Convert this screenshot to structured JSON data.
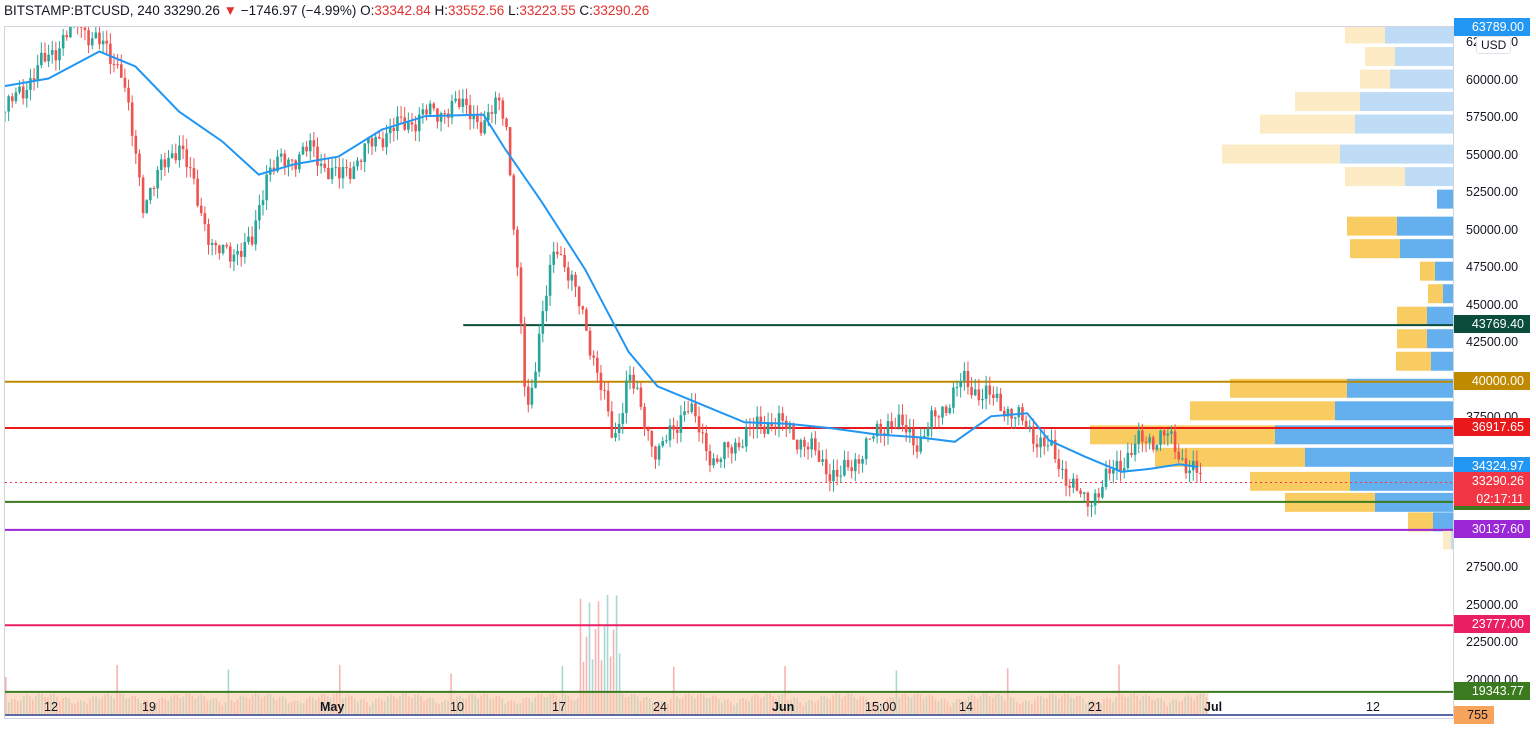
{
  "header": {
    "symbol": "BITSTAMP:BTCUSD, 240",
    "last": "33290.26",
    "arrow": "▼",
    "change": "−1746.97 (−4.99%)",
    "o_label": "O:",
    "o": "33342.84",
    "h_label": "H:",
    "h": "33552.56",
    "l_label": "L:",
    "l": "33223.55",
    "c_label": "C:",
    "c": "33290.26"
  },
  "currency_button": "USD",
  "price_axis": {
    "ticks": [
      "62500.00",
      "60000.00",
      "57500.00",
      "55000.00",
      "52500.00",
      "50000.00",
      "47500.00",
      "45000.00",
      "42500.00",
      "37500.00",
      "27500.00",
      "25000.00",
      "22500.00",
      "20000.00"
    ],
    "tick_values": [
      62500,
      60000,
      57500,
      55000,
      52500,
      50000,
      47500,
      45000,
      42500,
      37500,
      27500,
      25000,
      22500,
      20000
    ],
    "top_partial": "63789.00"
  },
  "time_axis": {
    "labels": [
      "12",
      "19",
      "May",
      "10",
      "17",
      "24",
      "Jun",
      "15:00",
      "14",
      "21",
      "Jul",
      "12"
    ],
    "bold": [
      "May",
      "Jun",
      "Jul"
    ]
  },
  "levels": [
    {
      "name": "level-43769",
      "value": "43769.40",
      "price": 43769.4,
      "color": "#0b4d3c",
      "x_start": 0.316
    },
    {
      "name": "level-40000",
      "value": "40000.00",
      "price": 40000,
      "color": "#bf8a00",
      "x_start": 0
    },
    {
      "name": "level-36917",
      "value": "36917.65",
      "price": 36917.65,
      "color": "#e8181b",
      "x_start": 0
    },
    {
      "name": "level-32000",
      "value": "32000.00",
      "price": 32000,
      "color": "#3b7a1f",
      "x_start": 0
    },
    {
      "name": "level-30137",
      "value": "30137.60",
      "price": 30137.6,
      "color": "#9c27d6",
      "x_start": 0
    },
    {
      "name": "level-23777",
      "value": "23777.00",
      "price": 23777,
      "color": "#e91e63",
      "x_start": 0
    },
    {
      "name": "level-19343",
      "value": "19343.77",
      "price": 19343.77,
      "color": "#3b7a1f",
      "x_start": 0
    }
  ],
  "price_tags": {
    "ma": {
      "value": "34324.97",
      "color": "#2196f3",
      "price": 34324.97
    },
    "last": {
      "value": "33290.26",
      "countdown": "02:17:11",
      "color": "#f23645",
      "price": 33290.26
    },
    "volume": {
      "value": "755",
      "color": "#f7a35c"
    }
  },
  "chart_data": {
    "type": "candlestick",
    "series": [
      {
        "name": "BTCUSD",
        "points": [
          [
            0,
            58000
          ],
          [
            0.02,
            60500
          ],
          [
            0.05,
            64000
          ],
          [
            0.08,
            61000
          ],
          [
            0.095,
            52000
          ],
          [
            0.12,
            56000
          ],
          [
            0.145,
            48500
          ],
          [
            0.17,
            49000
          ],
          [
            0.18,
            54000
          ],
          [
            0.21,
            55500
          ],
          [
            0.23,
            53500
          ],
          [
            0.26,
            56500
          ],
          [
            0.29,
            57800
          ],
          [
            0.32,
            58500
          ],
          [
            0.34,
            59200
          ],
          [
            0.33,
            56500
          ],
          [
            0.345,
            58000
          ],
          [
            0.36,
            38000
          ],
          [
            0.38,
            49500
          ],
          [
            0.4,
            44000
          ],
          [
            0.42,
            36000
          ],
          [
            0.43,
            40500
          ],
          [
            0.45,
            35000
          ],
          [
            0.47,
            38500
          ],
          [
            0.49,
            34500
          ],
          [
            0.51,
            36500
          ],
          [
            0.53,
            37500
          ],
          [
            0.55,
            36000
          ],
          [
            0.575,
            33500
          ],
          [
            0.61,
            37500
          ],
          [
            0.63,
            36000
          ],
          [
            0.66,
            40000
          ],
          [
            0.69,
            38300
          ],
          [
            0.72,
            35500
          ],
          [
            0.745,
            31800
          ],
          [
            0.76,
            33500
          ],
          [
            0.78,
            35800
          ],
          [
            0.8,
            36500
          ],
          [
            0.81,
            35100
          ],
          [
            0.827,
            33290
          ]
        ]
      },
      {
        "name": "MA",
        "points": [
          [
            0,
            59700
          ],
          [
            0.03,
            60200
          ],
          [
            0.065,
            62000
          ],
          [
            0.09,
            61000
          ],
          [
            0.12,
            58000
          ],
          [
            0.15,
            56000
          ],
          [
            0.175,
            53800
          ],
          [
            0.2,
            54500
          ],
          [
            0.23,
            55000
          ],
          [
            0.26,
            56800
          ],
          [
            0.29,
            57700
          ],
          [
            0.33,
            57800
          ],
          [
            0.345,
            55500
          ],
          [
            0.37,
            52000
          ],
          [
            0.4,
            47500
          ],
          [
            0.43,
            42000
          ],
          [
            0.45,
            39700
          ],
          [
            0.48,
            38500
          ],
          [
            0.51,
            37300
          ],
          [
            0.54,
            37200
          ],
          [
            0.57,
            36900
          ],
          [
            0.6,
            36500
          ],
          [
            0.63,
            36300
          ],
          [
            0.655,
            36000
          ],
          [
            0.68,
            37700
          ],
          [
            0.705,
            37900
          ],
          [
            0.72,
            36100
          ],
          [
            0.745,
            35000
          ],
          [
            0.77,
            34000
          ],
          [
            0.79,
            34200
          ],
          [
            0.81,
            34500
          ],
          [
            0.823,
            34325
          ]
        ]
      }
    ],
    "volume_profile_note": ""
  }
}
